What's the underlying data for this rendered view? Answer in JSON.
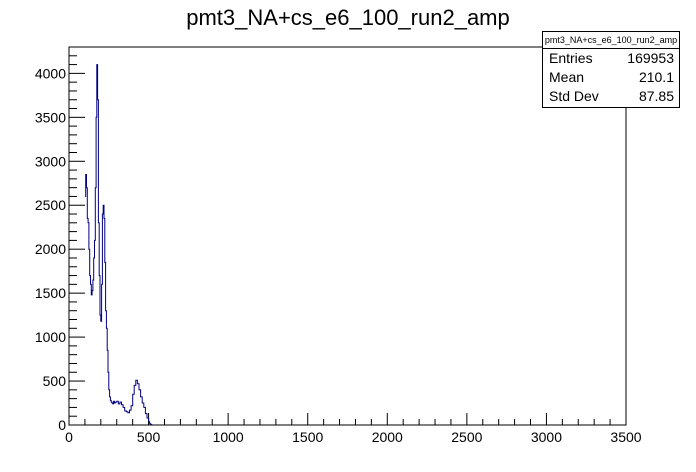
{
  "chart_data": {
    "type": "histogram",
    "title": "pmt3_NA+cs_e6_100_run2_amp",
    "xlabel": "",
    "ylabel": "",
    "xlim": [
      0,
      3500
    ],
    "ylim": [
      0,
      4300
    ],
    "x_ticks": [
      0,
      500,
      1000,
      1500,
      2000,
      2500,
      3000,
      3500
    ],
    "x_tick_labels": [
      "0",
      "500",
      "1000",
      "1500",
      "2000",
      "2500",
      "3000",
      "3500"
    ],
    "y_ticks": [
      0,
      500,
      1000,
      1500,
      2000,
      2500,
      3000,
      3500,
      4000
    ],
    "y_tick_labels": [
      "0",
      "500",
      "1000",
      "1500",
      "2000",
      "2500",
      "3000",
      "3500",
      "4000"
    ],
    "grid": false,
    "line_color": "#000080",
    "series": [
      {
        "x": [
          100,
          105,
          110,
          115,
          120,
          125,
          130,
          135,
          140,
          145,
          150,
          155,
          160,
          165,
          170,
          175,
          180,
          185,
          190,
          195,
          200,
          205,
          210,
          215,
          220,
          225,
          230,
          235,
          240,
          245,
          250,
          255,
          260,
          265,
          270,
          275,
          280,
          285,
          290,
          300,
          310,
          320,
          330,
          340,
          350,
          360,
          370,
          380,
          390,
          400,
          410,
          420,
          430,
          440,
          450,
          460,
          470,
          480,
          490,
          500,
          505,
          510,
          515,
          520
        ],
        "y": [
          2600,
          2850,
          2700,
          2350,
          2300,
          2000,
          1700,
          1600,
          1480,
          1530,
          1650,
          1900,
          2100,
          2700,
          3500,
          4100,
          3700,
          2300,
          1700,
          1250,
          1180,
          1600,
          2400,
          2500,
          2350,
          1850,
          1300,
          1100,
          850,
          600,
          400,
          320,
          280,
          260,
          250,
          240,
          270,
          250,
          260,
          270,
          240,
          260,
          230,
          200,
          160,
          150,
          140,
          170,
          220,
          350,
          450,
          510,
          470,
          400,
          320,
          250,
          200,
          130,
          80,
          40,
          20,
          10,
          5,
          0
        ]
      }
    ],
    "stats": {
      "title": "pmt3_NA+cs_e6_100_run2_amp",
      "rows": [
        {
          "label": "Entries",
          "value": "169953"
        },
        {
          "label": "Mean",
          "value": "210.1"
        },
        {
          "label": "Std Dev",
          "value": "87.85"
        }
      ]
    }
  }
}
